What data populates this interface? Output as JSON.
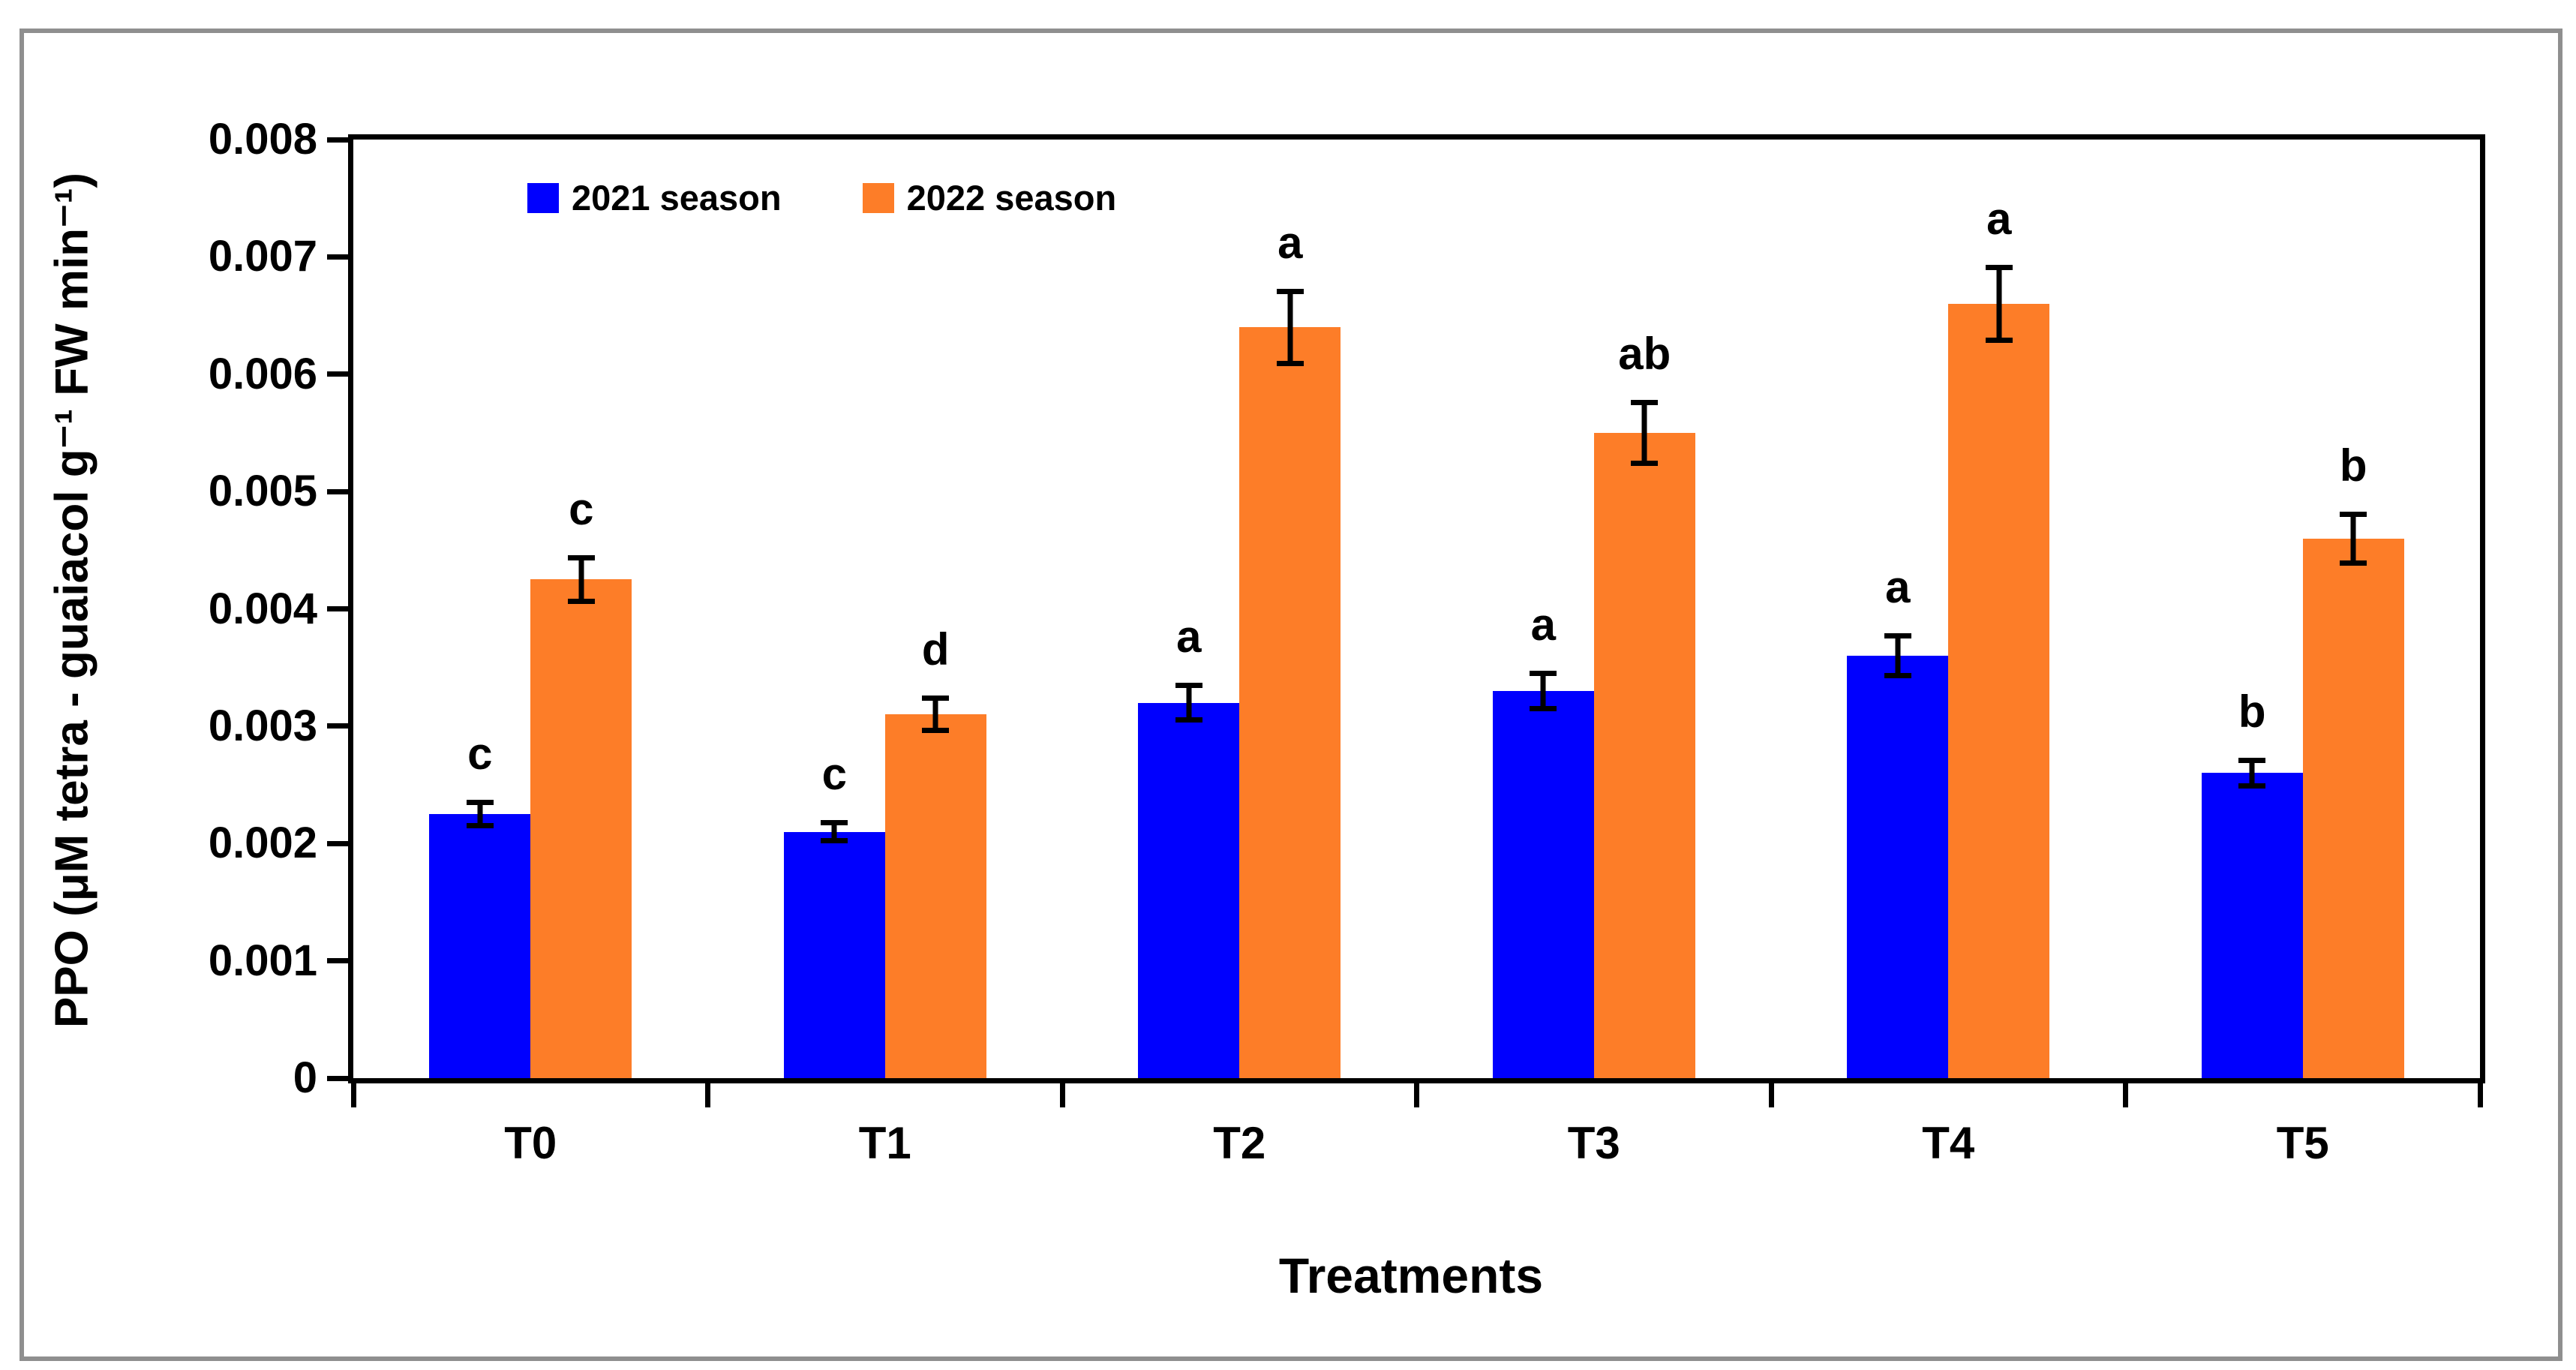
{
  "figure": {
    "outer_border_color": "#8f8f8f",
    "background_color": "#ffffff",
    "axis_color": "#000000"
  },
  "chart_data": {
    "type": "bar",
    "title": "",
    "xlabel": "Treatments",
    "ylabel": "PPO (μM tetra - guaiacol g⁻¹ FW min⁻¹)",
    "categories": [
      "T0",
      "T1",
      "T2",
      "T3",
      "T4",
      "T5"
    ],
    "series": [
      {
        "name": "2021 season",
        "color": "#0000fe",
        "values": [
          0.00225,
          0.0021,
          0.0032,
          0.0033,
          0.0036,
          0.0026
        ],
        "errors": [
          0.00012,
          0.0001,
          0.00017,
          0.00017,
          0.00019,
          0.00013
        ],
        "letters": [
          "c",
          "c",
          "a",
          "a",
          "a",
          "b"
        ]
      },
      {
        "name": "2022 season",
        "color": "#fd7d28",
        "values": [
          0.00425,
          0.0031,
          0.0064,
          0.0055,
          0.0066,
          0.0046
        ],
        "errors": [
          0.00021,
          0.00016,
          0.00033,
          0.00028,
          0.00033,
          0.00023
        ],
        "letters": [
          "c",
          "d",
          "a",
          "ab",
          "a",
          "b"
        ]
      }
    ],
    "ylim": [
      0,
      0.008
    ],
    "ytick_step": 0.001,
    "ytick_labels": [
      "0",
      "0.001",
      "0.002",
      "0.003",
      "0.004",
      "0.005",
      "0.006",
      "0.007",
      "0.008"
    ],
    "grid": false,
    "legend_position": "inside-top-left",
    "error_bars": true
  }
}
